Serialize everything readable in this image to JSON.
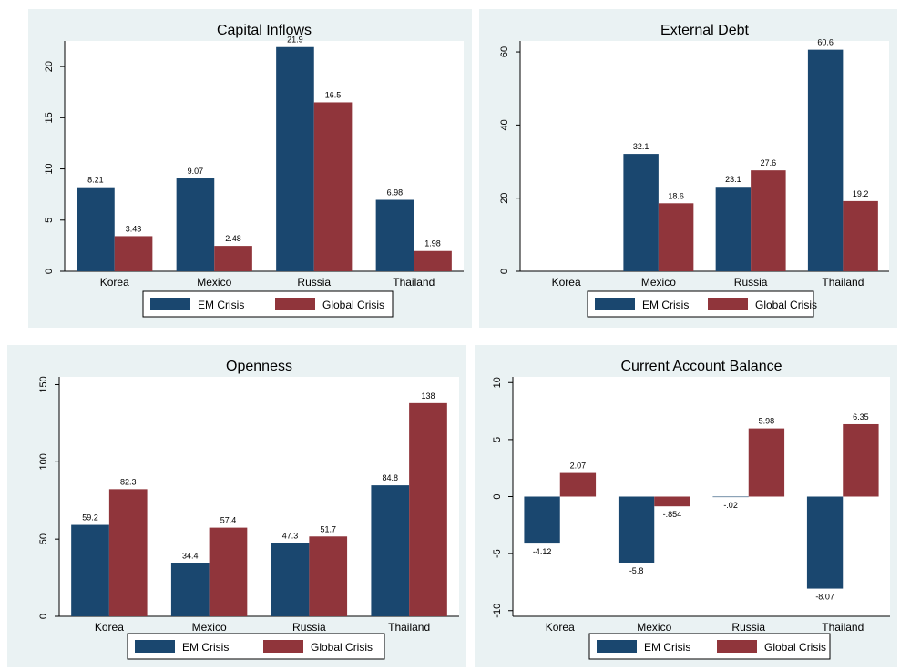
{
  "colors": {
    "em": "#1a476f",
    "global": "#90353b"
  },
  "legend": [
    "EM Crisis",
    "Global Crisis"
  ],
  "chart_data": [
    {
      "type": "bar",
      "title": "Capital Inflows",
      "categories": [
        "Korea",
        "Mexico",
        "Russia",
        "Thailand"
      ],
      "series": [
        {
          "name": "EM Crisis",
          "values": [
            8.21,
            9.07,
            21.9,
            6.98
          ],
          "labels": [
            "8.21",
            "9.07",
            "21.9",
            "6.98"
          ]
        },
        {
          "name": "Global Crisis",
          "values": [
            3.43,
            2.48,
            16.5,
            1.98
          ],
          "labels": [
            "3.43",
            "2.48",
            "16.5",
            "1.98"
          ]
        }
      ],
      "ylim": [
        0,
        22.5
      ],
      "yticks": [
        0,
        5,
        10,
        15,
        20
      ],
      "yticklabels": [
        "0",
        "5",
        "10",
        "15",
        "20"
      ],
      "legend_placement": "bottom"
    },
    {
      "type": "bar",
      "title": "External Debt",
      "categories": [
        "Korea",
        "Mexico",
        "Russia",
        "Thailand"
      ],
      "series": [
        {
          "name": "EM Crisis",
          "values": [
            null,
            32.1,
            23.1,
            60.6
          ],
          "labels": [
            "",
            "32.1",
            "23.1",
            "60.6"
          ]
        },
        {
          "name": "Global Crisis",
          "values": [
            null,
            18.6,
            27.6,
            19.2
          ],
          "labels": [
            "",
            "18.6",
            "27.6",
            "19.2"
          ]
        }
      ],
      "ylim": [
        0,
        63
      ],
      "yticks": [
        0,
        20,
        40,
        60
      ],
      "yticklabels": [
        "0",
        "20",
        "40",
        "60"
      ],
      "legend_placement": "bottom"
    },
    {
      "type": "bar",
      "title": "Openness",
      "categories": [
        "Korea",
        "Mexico",
        "Russia",
        "Thailand"
      ],
      "series": [
        {
          "name": "EM Crisis",
          "values": [
            59.2,
            34.4,
            47.3,
            84.8
          ],
          "labels": [
            "59.2",
            "34.4",
            "47.3",
            "84.8"
          ]
        },
        {
          "name": "Global Crisis",
          "values": [
            82.3,
            57.4,
            51.7,
            138
          ],
          "labels": [
            "82.3",
            "57.4",
            "51.7",
            "138"
          ]
        }
      ],
      "ylim": [
        0,
        155
      ],
      "yticks": [
        0,
        50,
        100,
        150
      ],
      "yticklabels": [
        "0",
        "50",
        "100",
        "150"
      ],
      "legend_placement": "bottom"
    },
    {
      "type": "bar",
      "title": "Current Account Balance",
      "categories": [
        "Korea",
        "Mexico",
        "Russia",
        "Thailand"
      ],
      "series": [
        {
          "name": "EM Crisis",
          "values": [
            -4.12,
            -5.8,
            -0.02,
            -8.07
          ],
          "labels": [
            "-4.12",
            "-5.8",
            "-.02",
            "-8.07"
          ]
        },
        {
          "name": "Global Crisis",
          "values": [
            2.07,
            -0.854,
            5.98,
            6.35
          ],
          "labels": [
            "2.07",
            "-.854",
            "5.98",
            "6.35"
          ]
        }
      ],
      "ylim": [
        -10.5,
        10.5
      ],
      "yticks": [
        -10,
        -5,
        0,
        5,
        10
      ],
      "yticklabels": [
        "-10",
        "-5",
        "0",
        "5",
        "10"
      ],
      "legend_placement": "bottom"
    }
  ]
}
